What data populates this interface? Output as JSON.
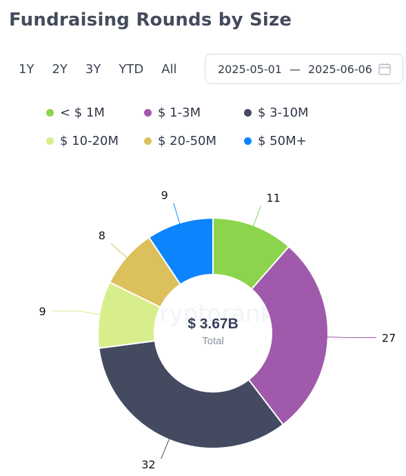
{
  "title": "Fundraising Rounds by Size",
  "range_buttons": [
    "1Y",
    "2Y",
    "3Y",
    "YTD",
    "All"
  ],
  "date_range": {
    "start": "2025-05-01",
    "separator": "—",
    "end": "2025-06-06",
    "icon": "calendar-icon"
  },
  "center": {
    "value": "$ 3.67B",
    "label": "Total"
  },
  "watermark": "cryptorank",
  "chart_data": {
    "type": "pie",
    "donut": true,
    "legend_position": "top",
    "categories": [
      "< $ 1M",
      "$ 1-3M",
      "$ 3-10M",
      "$ 10-20M",
      "$ 20-50M",
      "$ 50M+"
    ],
    "values": [
      11,
      27,
      32,
      9,
      8,
      9
    ],
    "colors": [
      "#8cd44c",
      "#a05aac",
      "#444a60",
      "#d8ee8c",
      "#dcc05c",
      "#0c84fc"
    ]
  }
}
